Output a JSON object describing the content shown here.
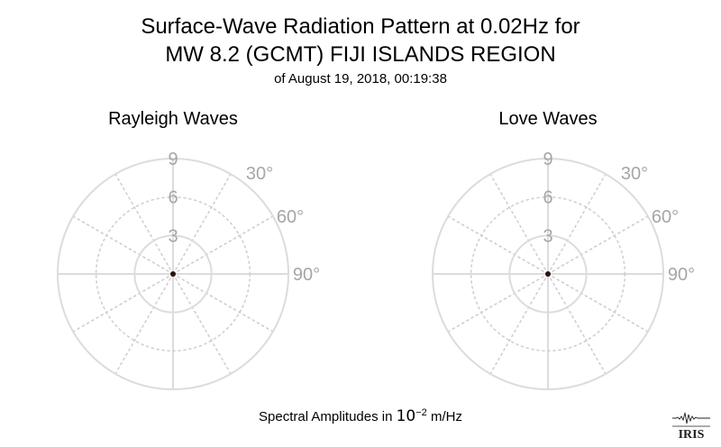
{
  "title_line1": "Surface-Wave Radiation Pattern at 0.02Hz for",
  "title_line2": "MW 8.2 (GCMT) FIJI ISLANDS REGION",
  "subtitle": "of August 19, 2018, 00:19:38",
  "footer": {
    "prefix": "Spectral Amplitudes in ",
    "base": "10",
    "exponent": "−2",
    "unit": " m/Hz"
  },
  "logo_text": "IRIS",
  "colors": {
    "grid_solid": "#dcdcdc",
    "grid_dotted": "#d0d0d0",
    "tick_label": "#a6a6a6",
    "data_point": "#2a1410"
  },
  "chart_data": [
    {
      "type": "scatter",
      "projection": "polar",
      "title": "Rayleigh Waves",
      "radial_ticks": [
        3,
        6,
        9
      ],
      "radial_range": [
        0,
        9
      ],
      "angle_ticks_labeled": [
        "30°",
        "60°",
        "90°"
      ],
      "angle_grid_step_deg": 30,
      "theta_zero": "north",
      "theta_direction": "clockwise",
      "grid": true,
      "series": [
        {
          "values": [
            {
              "theta": 0,
              "r": 0
            }
          ]
        }
      ]
    },
    {
      "type": "scatter",
      "projection": "polar",
      "title": "Love Waves",
      "radial_ticks": [
        3,
        6,
        9
      ],
      "radial_range": [
        0,
        9
      ],
      "angle_ticks_labeled": [
        "30°",
        "60°",
        "90°"
      ],
      "angle_grid_step_deg": 30,
      "theta_zero": "north",
      "theta_direction": "clockwise",
      "grid": true,
      "series": [
        {
          "values": [
            {
              "theta": 0,
              "r": 0
            }
          ]
        }
      ]
    }
  ]
}
